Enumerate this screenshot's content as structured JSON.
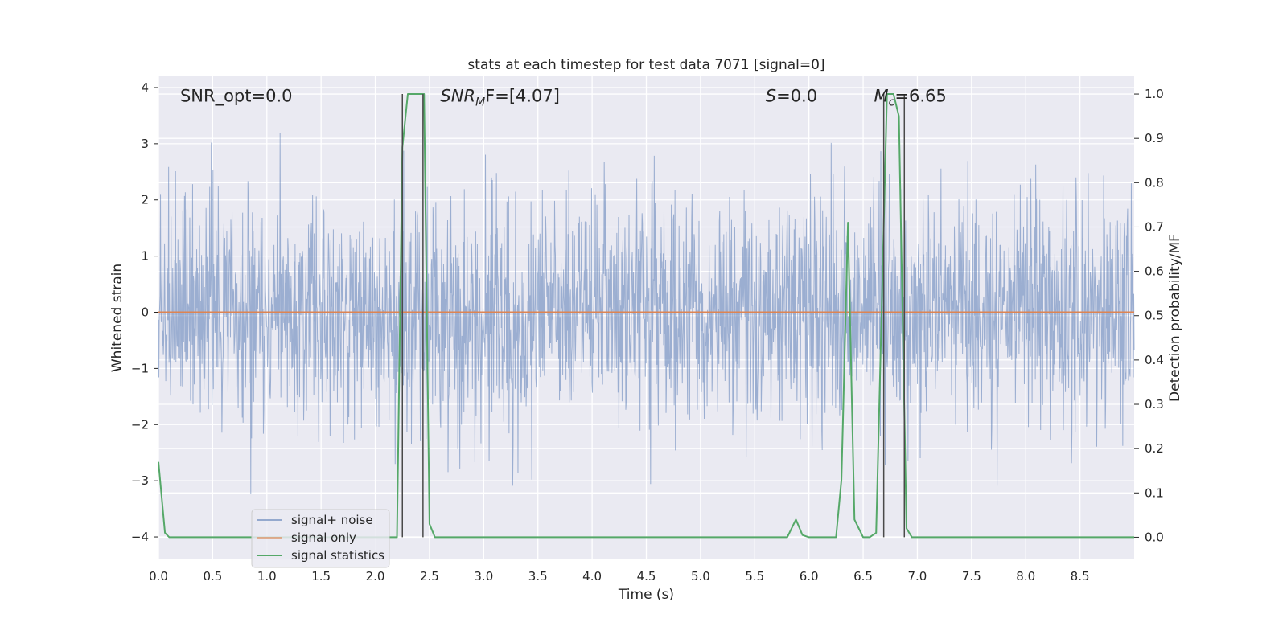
{
  "chart_data": {
    "type": "line",
    "title": "stats at each timestep for test data 7071 [signal=0]",
    "xlabel": "Time (s)",
    "ylabel_left": "Whitened strain",
    "ylabel_right": "Detection probability/MF",
    "xlim": [
      0.0,
      9.0
    ],
    "ylim_left": [
      -4.4,
      4.2
    ],
    "ylim_right": [
      -0.05,
      1.04
    ],
    "x_ticks": [
      0.0,
      0.5,
      1.0,
      1.5,
      2.0,
      2.5,
      3.0,
      3.5,
      4.0,
      4.5,
      5.0,
      5.5,
      6.0,
      6.5,
      7.0,
      7.5,
      8.0,
      8.5
    ],
    "x_tick_labels": [
      "0.0",
      "0.5",
      "1.0",
      "1.5",
      "2.0",
      "2.5",
      "3.0",
      "3.5",
      "4.0",
      "4.5",
      "5.0",
      "5.5",
      "6.0",
      "6.5",
      "7.0",
      "7.5",
      "8.0",
      "8.5"
    ],
    "y_ticks_left": [
      -4,
      -3,
      -2,
      -1,
      0,
      1,
      2,
      3,
      4
    ],
    "y_tick_labels_left": [
      "−4",
      "−3",
      "−2",
      "−1",
      "0",
      "1",
      "2",
      "3",
      "4"
    ],
    "y_ticks_right": [
      0.0,
      0.1,
      0.2,
      0.3,
      0.4,
      0.5,
      0.6,
      0.7,
      0.8,
      0.9,
      1.0
    ],
    "y_tick_labels_right": [
      "0.0",
      "0.1",
      "0.2",
      "0.3",
      "0.4",
      "0.5",
      "0.6",
      "0.7",
      "0.8",
      "0.9",
      "1.0"
    ],
    "annotations": [
      {
        "text_main": "SNR_opt=0.0",
        "x": 0.2
      },
      {
        "text_main": "SNR",
        "sub": "M",
        "text_tail": "F=[4.07]",
        "italic_main": true,
        "x": 2.6
      },
      {
        "text_main": "S",
        "text_tail": "=0.0",
        "italic_main": true,
        "x": 5.6
      },
      {
        "text_main": "M",
        "sub": "c",
        "text_tail": "=6.65",
        "italic_main": true,
        "x": 6.6
      }
    ],
    "annotation_y": 3.85,
    "noise": {
      "name": "signal+ noise",
      "color": "#4c72b0",
      "n_points": 2400,
      "seed": 7071,
      "sigma": 1.0
    },
    "series": [
      {
        "name": "signal only",
        "color": "#dd8452",
        "axis": "left",
        "x": [
          0.0,
          9.0
        ],
        "values": [
          0.0,
          0.0
        ]
      },
      {
        "name": "signal statistics",
        "color": "#55a868",
        "axis": "right",
        "x": [
          0.0,
          0.06,
          0.1,
          0.15,
          2.15,
          2.2,
          2.25,
          2.3,
          2.35,
          2.45,
          2.5,
          2.55,
          2.6,
          5.75,
          5.8,
          5.88,
          5.94,
          6.0,
          6.05,
          6.25,
          6.3,
          6.36,
          6.42,
          6.5,
          6.56,
          6.62,
          6.72,
          6.78,
          6.83,
          6.9,
          6.95,
          7.0,
          9.0
        ],
        "values": [
          0.17,
          0.01,
          0.0,
          0.0,
          0.0,
          0.0,
          0.88,
          1.0,
          1.0,
          1.0,
          0.03,
          0.0,
          0.0,
          0.0,
          0.0,
          0.04,
          0.005,
          0.0,
          0.0,
          0.0,
          0.13,
          0.71,
          0.04,
          0.0,
          0.0,
          0.01,
          1.0,
          1.0,
          0.95,
          0.02,
          0.0,
          0.0,
          0.0
        ]
      }
    ],
    "vlines": [
      2.25,
      2.44,
      6.69,
      6.88
    ],
    "vline_color": "#4a4a4a",
    "vline_top": 1.0,
    "legend_position": "lower-left",
    "legend_entries": [
      "signal+ noise",
      "signal only",
      "signal statistics"
    ],
    "grid": true,
    "plot_bg": "#eaeaf2"
  }
}
